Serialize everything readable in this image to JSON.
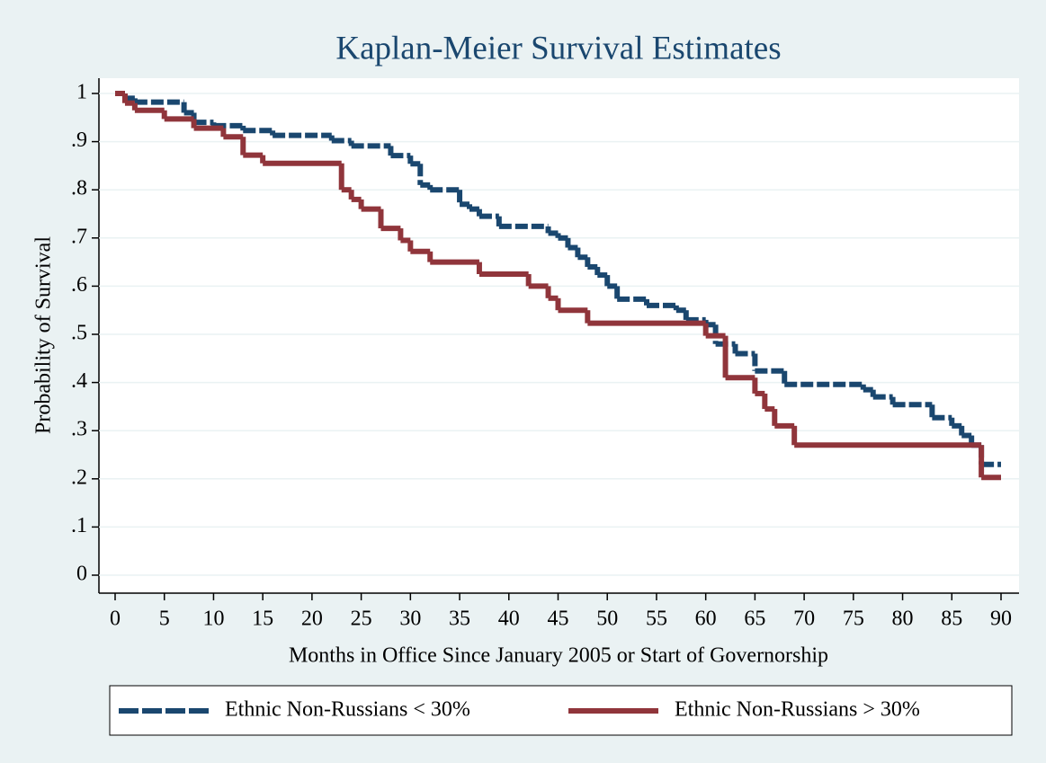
{
  "chart_data": {
    "type": "step",
    "title": "Kaplan-Meier Survival Estimates",
    "x_label": "Months in Office Since January 2005 or Start of Governorship",
    "y_label": "Probability of Survival",
    "xlim": [
      0,
      90
    ],
    "ylim": [
      0,
      1
    ],
    "xticks": [
      0,
      5,
      10,
      15,
      20,
      25,
      30,
      35,
      40,
      45,
      50,
      55,
      60,
      65,
      70,
      75,
      80,
      85,
      90
    ],
    "yticks": [
      0,
      {
        "value": 0.1,
        "label": ".1"
      },
      {
        "value": 0.2,
        "label": ".2"
      },
      {
        "value": 0.3,
        "label": ".3"
      },
      {
        "value": 0.4,
        "label": ".4"
      },
      {
        "value": 0.5,
        "label": ".5"
      },
      {
        "value": 0.6,
        "label": ".6"
      },
      {
        "value": 0.7,
        "label": ".7"
      },
      {
        "value": 0.8,
        "label": ".8"
      },
      {
        "value": 0.9,
        "label": ".9"
      },
      1
    ],
    "grid": true,
    "legend": "bottom",
    "series": [
      {
        "name": "Ethnic Non-Russians < 30%",
        "color": "#1a476f",
        "dash": true,
        "x": [
          0,
          1,
          2,
          7,
          8,
          10,
          13,
          16,
          22,
          24,
          28,
          30,
          31,
          32,
          35,
          36,
          37,
          39,
          44,
          45,
          46,
          47,
          48,
          49,
          50,
          51,
          54,
          57,
          58,
          60,
          61,
          63,
          65,
          68,
          76,
          77,
          79,
          83,
          85,
          86,
          87,
          88
        ],
        "values": [
          1,
          0.99,
          0.982,
          0.96,
          0.94,
          0.933,
          0.923,
          0.913,
          0.902,
          0.891,
          0.871,
          0.854,
          0.81,
          0.8,
          0.77,
          0.76,
          0.745,
          0.724,
          0.71,
          0.7,
          0.68,
          0.66,
          0.64,
          0.623,
          0.6,
          0.573,
          0.56,
          0.55,
          0.53,
          0.52,
          0.48,
          0.46,
          0.424,
          0.396,
          0.385,
          0.37,
          0.354,
          0.327,
          0.31,
          0.29,
          0.27,
          0.23
        ]
      },
      {
        "name": "Ethnic Non-Russians > 30%",
        "color": "#90353b",
        "dash": false,
        "x": [
          0,
          1,
          2,
          5,
          8,
          11,
          13,
          15,
          23,
          24,
          25,
          27,
          29,
          30,
          32,
          37,
          42,
          44,
          45,
          48,
          60,
          62,
          65,
          66,
          67,
          69,
          88
        ],
        "values": [
          1,
          0.98,
          0.965,
          0.947,
          0.928,
          0.91,
          0.872,
          0.855,
          0.8,
          0.78,
          0.76,
          0.72,
          0.695,
          0.672,
          0.65,
          0.625,
          0.6,
          0.575,
          0.55,
          0.523,
          0.497,
          0.41,
          0.377,
          0.345,
          0.31,
          0.27,
          0.203
        ]
      }
    ]
  }
}
